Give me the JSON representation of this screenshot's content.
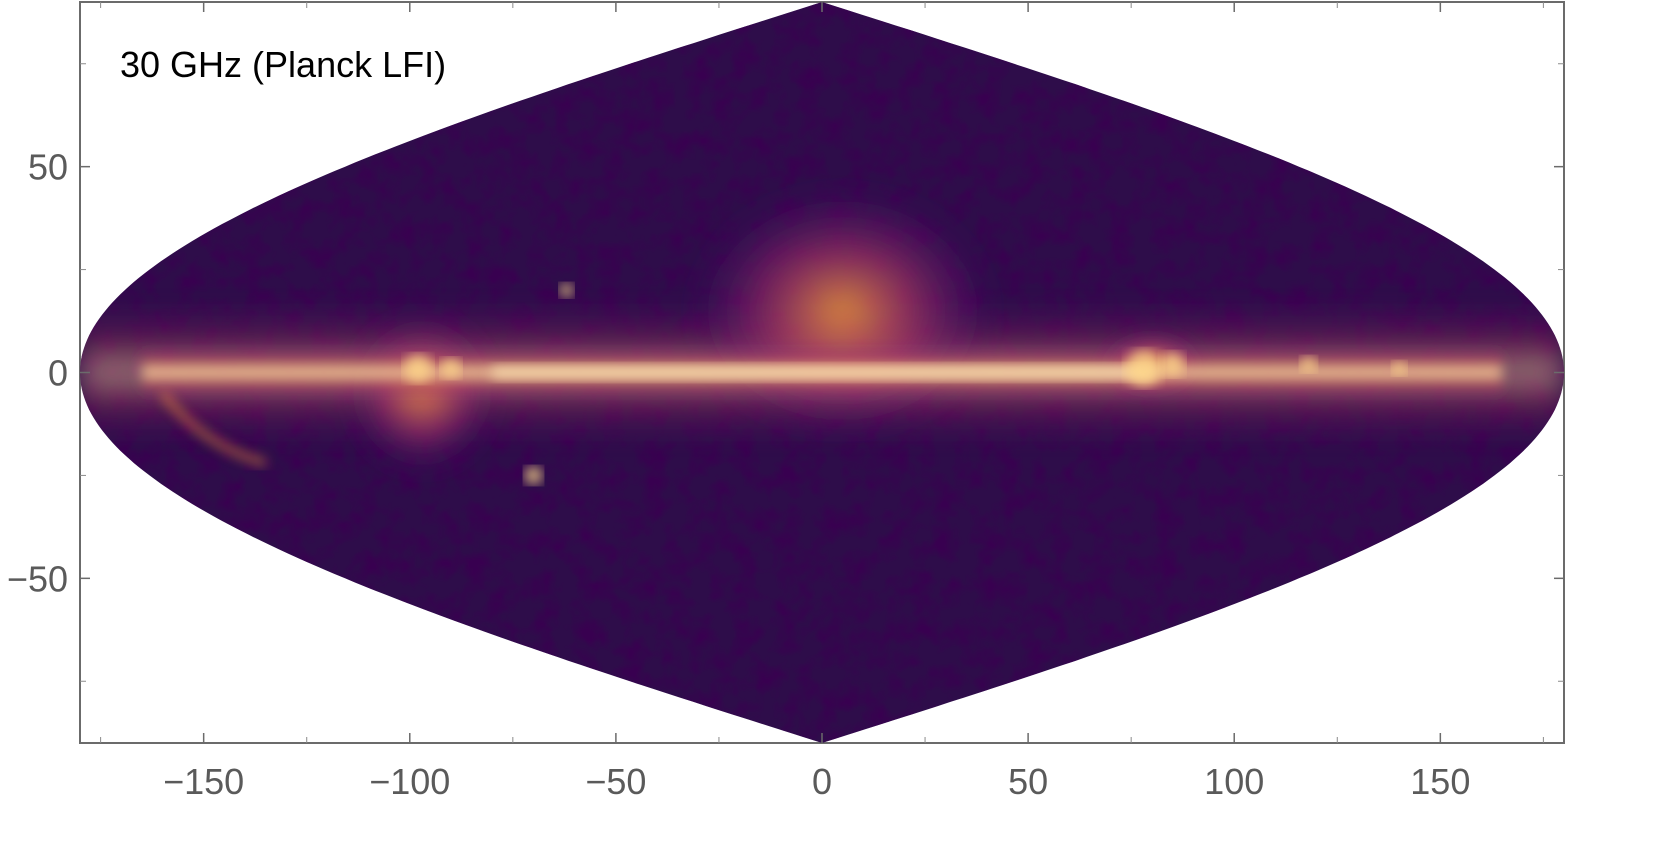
{
  "title": "30 GHz (Planck LFI)",
  "projection": "sinusoidal (all-sky)",
  "colormap": [
    "#000000",
    "#2a0a40",
    "#5a1a80",
    "#a02f6a",
    "#e8521e",
    "#fca635",
    "#ffffc8"
  ],
  "axes": {
    "x": {
      "range": [
        -180,
        180
      ],
      "ticks": [
        -150,
        -100,
        -50,
        0,
        50,
        100,
        150
      ],
      "tick_labels": [
        "−150",
        "−100",
        "−50",
        "0",
        "50",
        "100",
        "150"
      ]
    },
    "y": {
      "range": [
        -90,
        90
      ],
      "ticks": [
        -50,
        0,
        50
      ],
      "tick_labels": [
        "−50",
        "0",
        "50"
      ]
    }
  },
  "colors": {
    "frame": "#6b6b6b",
    "background_sky": "#2e0d4a",
    "band": "#ffcf6a"
  }
}
